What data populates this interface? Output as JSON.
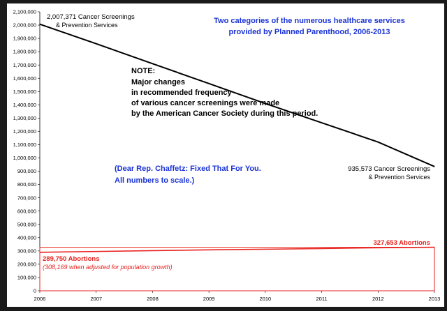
{
  "chart_data": {
    "type": "line",
    "title_line1": "Two categories of the numerous healthcare services",
    "title_line2": "provided by Planned Parenthood, 2006-2013",
    "x": [
      "2006",
      "2007",
      "2008",
      "2009",
      "2010",
      "2011",
      "2012",
      "2013"
    ],
    "ylim": [
      0,
      2100000
    ],
    "y_ticks": [
      "0",
      "100,000",
      "200,000",
      "300,000",
      "400,000",
      "500,000",
      "600,000",
      "700,000",
      "800,000",
      "900,000",
      "1,000,000",
      "1,100,000",
      "1,200,000",
      "1,300,000",
      "1,400,000",
      "1,500,000",
      "1,600,000",
      "1,700,000",
      "1,800,000",
      "1,900,000",
      "2,000,000",
      "2,100,000"
    ],
    "y_tick_values": [
      0,
      100000,
      200000,
      300000,
      400000,
      500000,
      600000,
      700000,
      800000,
      900000,
      1000000,
      1100000,
      1200000,
      1300000,
      1400000,
      1500000,
      1600000,
      1700000,
      1800000,
      1900000,
      2000000,
      2100000
    ],
    "series": [
      {
        "color": "#000000",
        "values": [
          2007371,
          1860000,
          1710000,
          1560000,
          1410000,
          1265000,
          1120000,
          935573
        ]
      },
      {
        "color": "#e8211d",
        "values": [
          289750,
          296000,
          302000,
          308000,
          313000,
          318000,
          324000,
          327653
        ]
      }
    ],
    "grid": false,
    "legend": "none",
    "annotations": {
      "cancer_start_1": "2,007,371 Cancer Screenings",
      "cancer_start_2": "& Prevention Services",
      "cancer_end_1": "935,573 Cancer Screenings",
      "cancer_end_2": "& Prevention Services",
      "note_1": "NOTE:",
      "note_2": "Major changes",
      "note_3": "in recommended frequency",
      "note_4": "of various cancer screenings were made",
      "note_5": "by the American Cancer Society during this period.",
      "fixed_1": "(Dear Rep. Chaffetz: Fixed That For You.",
      "fixed_2": "All numbers to scale.)",
      "abort_end": "327,653 Abortions",
      "abort_start": "289,750 Abortions",
      "abort_adjusted": "(308,169 when adjusted for population growth)"
    }
  },
  "colors": {
    "title": "#1a33d6",
    "cancer": "#000000",
    "abortion": "#e8211d",
    "frame": "#1a1a1a"
  }
}
